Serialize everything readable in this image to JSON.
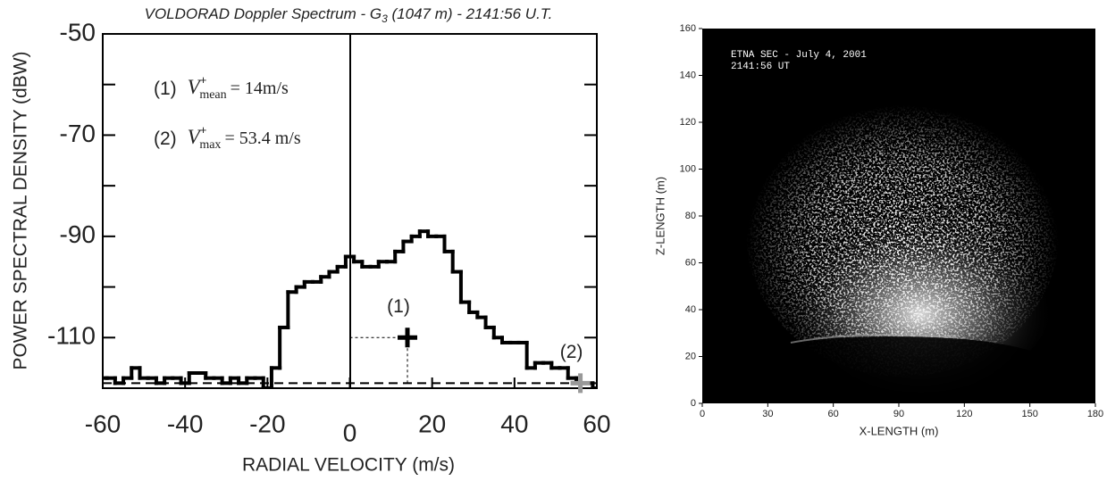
{
  "chart_data": [
    {
      "type": "line",
      "title_parts": [
        "VOLDORAD Doppler Spectrum - G",
        "3",
        " (1047 m) - 2141:56 U.T."
      ],
      "xlabel": "RADIAL VELOCITY (m/s)",
      "ylabel": "POWER SPECTRAL DENSITY (dBW)",
      "x": [
        -60,
        -58,
        -56,
        -54,
        -52,
        -50,
        -48,
        -46,
        -44,
        -42,
        -40,
        -38,
        -36,
        -34,
        -32,
        -30,
        -28,
        -26,
        -24,
        -22,
        -20,
        -18,
        -16,
        -14,
        -12,
        -10,
        -8,
        -6,
        -4,
        -2,
        0,
        2,
        4,
        6,
        8,
        10,
        12,
        14,
        16,
        18,
        20,
        22,
        24,
        26,
        28,
        30,
        32,
        34,
        36,
        38,
        40,
        42,
        44,
        46,
        48,
        50,
        52,
        54,
        56,
        58,
        60
      ],
      "values": [
        -118,
        -118,
        -119,
        -118,
        -116,
        -118,
        -118,
        -119,
        -118,
        -118,
        -119,
        -117,
        -117,
        -118,
        -118,
        -119,
        -118,
        -119,
        -118,
        -118,
        -120,
        -116,
        -108,
        -101,
        -100,
        -99,
        -99,
        -98,
        -97,
        -96,
        -94,
        -95,
        -96,
        -96,
        -95,
        -95,
        -93,
        -91,
        -90,
        -89,
        -90,
        -90,
        -93,
        -97,
        -103,
        -105,
        -106,
        -108,
        -110,
        -111,
        -111,
        -111,
        -116,
        -115,
        -115,
        -116,
        -116,
        -118,
        -119,
        -119,
        -120
      ],
      "color": "#000000",
      "xlim": [
        -60,
        60
      ],
      "xticks": [
        -60,
        -40,
        -20,
        0,
        20,
        40,
        60
      ],
      "ylim": [
        -120,
        -50
      ],
      "yticks": [
        -50,
        -70,
        -90,
        -110
      ],
      "yticks_minor": [
        -60,
        -80,
        -100
      ],
      "noise_level": -119,
      "annotations": [
        {
          "label": "(1)",
          "symbol": "V",
          "sup": "+",
          "sub": "mean",
          "text": "= 14m/s"
        },
        {
          "label": "(2)",
          "symbol": "V",
          "sup": "+",
          "sub": "max",
          "text": "= 53.4 m/s"
        }
      ],
      "markers": [
        {
          "label": "(1)",
          "x": 14,
          "y": -110,
          "color": "#000000"
        },
        {
          "label": "(2)",
          "x": 56,
          "y": -119,
          "color": "#999999"
        }
      ]
    },
    {
      "type": "image",
      "title_lines": [
        "ETNA SEC - July 4, 2001",
        "2141:56 UT"
      ],
      "xlabel": "X-LENGTH (m)",
      "ylabel": "Z-LENGTH (m)",
      "xlim": [
        0,
        180
      ],
      "xticks": [
        0,
        30,
        60,
        90,
        120,
        150,
        180
      ],
      "ylim": [
        0,
        160
      ],
      "yticks": [
        0,
        20,
        40,
        60,
        80,
        100,
        120,
        140,
        160
      ]
    }
  ]
}
